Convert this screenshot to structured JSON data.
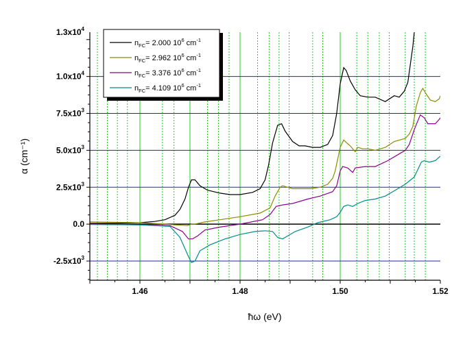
{
  "chart_data": {
    "type": "line",
    "xlabel": "ħω (eV)",
    "ylabel": "α (cm⁻¹)",
    "xlim": [
      1.45,
      1.52
    ],
    "ylim": [
      -3800,
      13000
    ],
    "x_ticks": [
      {
        "value": 1.46,
        "label": "1.46"
      },
      {
        "value": 1.48,
        "label": "1.48"
      },
      {
        "value": 1.5,
        "label": "1.50"
      },
      {
        "value": 1.52,
        "label": "1.52"
      }
    ],
    "y_ticks": [
      {
        "value": -2500,
        "label": "-2.5x10",
        "exp": "3"
      },
      {
        "value": 0,
        "label": "0.0",
        "exp": ""
      },
      {
        "value": 2500,
        "label": "2.5x10",
        "exp": "3"
      },
      {
        "value": 5000,
        "label": "5.0x10",
        "exp": "3"
      },
      {
        "value": 7500,
        "label": "7.5x10",
        "exp": "3"
      },
      {
        "value": 10000,
        "label": "1.0x10",
        "exp": "4"
      },
      {
        "value": 13000,
        "label": "1.3x10",
        "exp": "4"
      }
    ],
    "h_gridlines": [
      -2500,
      2500,
      5000,
      7500,
      10000
    ],
    "zero_line": 0,
    "v_gridlines_major": [
      1.46,
      1.47,
      1.48,
      1.5
    ],
    "v_gridlines_dotted": [
      1.4515,
      1.4535,
      1.4555,
      1.4575,
      1.4645,
      1.4668,
      1.4735,
      1.4757,
      1.4778,
      1.4835,
      1.4858,
      1.4878,
      1.4898,
      1.4945,
      1.4965,
      1.5033,
      1.5055,
      1.5078,
      1.5098,
      1.513,
      1.5148,
      1.517
    ],
    "grid_colors": {
      "horizontal": "#2222aa",
      "vertical": "#22cc22",
      "zero": "#000000"
    },
    "legend": {
      "position": "top-left",
      "entries": [
        {
          "prefix": "n",
          "sub": "FC",
          "text": "= 2.000 10",
          "sup": "6",
          "unit": " cm",
          "unit_sup": "-1",
          "color": "#000000"
        },
        {
          "prefix": "n",
          "sub": "FC",
          "text": "= 2.962 10",
          "sup": "6",
          "unit": " cm",
          "unit_sup": "-1",
          "color": "#8b8b00"
        },
        {
          "prefix": "n",
          "sub": "FC",
          "text": "= 3.376 10",
          "sup": "6",
          "unit": " cm",
          "unit_sup": "-1",
          "color": "#8b008b"
        },
        {
          "prefix": "n",
          "sub": "FC",
          "text": "= 4.109 10",
          "sup": "6",
          "unit": " cm",
          "unit_sup": "-1",
          "color": "#008b8b"
        }
      ]
    },
    "series": [
      {
        "name": "nFC= 2.000 10^6 cm^-1",
        "color": "#000000",
        "points": [
          [
            1.45,
            50
          ],
          [
            1.455,
            60
          ],
          [
            1.46,
            100
          ],
          [
            1.463,
            180
          ],
          [
            1.465,
            300
          ],
          [
            1.467,
            600
          ],
          [
            1.468,
            1000
          ],
          [
            1.469,
            1700
          ],
          [
            1.4697,
            2500
          ],
          [
            1.4703,
            3000
          ],
          [
            1.471,
            3000
          ],
          [
            1.472,
            2600
          ],
          [
            1.4735,
            2300
          ],
          [
            1.476,
            2100
          ],
          [
            1.478,
            2000
          ],
          [
            1.48,
            2000
          ],
          [
            1.4825,
            2150
          ],
          [
            1.484,
            2400
          ],
          [
            1.485,
            3000
          ],
          [
            1.4857,
            4000
          ],
          [
            1.4865,
            5500
          ],
          [
            1.4875,
            6700
          ],
          [
            1.4883,
            6800
          ],
          [
            1.489,
            6300
          ],
          [
            1.4905,
            5600
          ],
          [
            1.4918,
            5300
          ],
          [
            1.493,
            5300
          ],
          [
            1.4945,
            5200
          ],
          [
            1.496,
            5200
          ],
          [
            1.4975,
            5400
          ],
          [
            1.4985,
            6000
          ],
          [
            1.4993,
            7500
          ],
          [
            1.5,
            9500
          ],
          [
            1.5007,
            10600
          ],
          [
            1.5012,
            10400
          ],
          [
            1.502,
            9700
          ],
          [
            1.503,
            9100
          ],
          [
            1.504,
            8700
          ],
          [
            1.5055,
            8600
          ],
          [
            1.507,
            8600
          ],
          [
            1.509,
            8300
          ],
          [
            1.5108,
            8700
          ],
          [
            1.5118,
            8600
          ],
          [
            1.5128,
            9000
          ],
          [
            1.5135,
            9600
          ],
          [
            1.514,
            10800
          ],
          [
            1.5145,
            12000
          ],
          [
            1.5148,
            13000
          ]
        ]
      },
      {
        "name": "nFC= 2.962 10^6 cm^-1",
        "color": "#8b8b00",
        "points": [
          [
            1.45,
            150
          ],
          [
            1.46,
            100
          ],
          [
            1.465,
            0
          ],
          [
            1.467,
            -50
          ],
          [
            1.4695,
            -100
          ],
          [
            1.4703,
            0
          ],
          [
            1.471,
            0
          ],
          [
            1.473,
            150
          ],
          [
            1.476,
            300
          ],
          [
            1.48,
            500
          ],
          [
            1.484,
            750
          ],
          [
            1.486,
            1100
          ],
          [
            1.487,
            1900
          ],
          [
            1.488,
            2500
          ],
          [
            1.4885,
            2600
          ],
          [
            1.4895,
            2500
          ],
          [
            1.4905,
            2400
          ],
          [
            1.492,
            2400
          ],
          [
            1.494,
            2400
          ],
          [
            1.496,
            2500
          ],
          [
            1.4975,
            2700
          ],
          [
            1.4985,
            3100
          ],
          [
            1.499,
            3600
          ],
          [
            1.5,
            5200
          ],
          [
            1.5007,
            5700
          ],
          [
            1.5013,
            5500
          ],
          [
            1.502,
            5300
          ],
          [
            1.503,
            4900
          ],
          [
            1.5035,
            5200
          ],
          [
            1.5045,
            5100
          ],
          [
            1.5055,
            5100
          ],
          [
            1.507,
            5000
          ],
          [
            1.509,
            5200
          ],
          [
            1.5108,
            5600
          ],
          [
            1.513,
            5800
          ],
          [
            1.5138,
            6100
          ],
          [
            1.5145,
            6600
          ],
          [
            1.5152,
            8000
          ],
          [
            1.516,
            8900
          ],
          [
            1.5165,
            9200
          ],
          [
            1.5172,
            8800
          ],
          [
            1.518,
            8400
          ],
          [
            1.519,
            8300
          ],
          [
            1.5198,
            8500
          ],
          [
            1.52,
            8700
          ]
        ]
      },
      {
        "name": "nFC= 3.376 10^6 cm^-1",
        "color": "#8b008b",
        "points": [
          [
            1.45,
            0
          ],
          [
            1.46,
            -50
          ],
          [
            1.466,
            -100
          ],
          [
            1.4685,
            -500
          ],
          [
            1.4697,
            -1000
          ],
          [
            1.4705,
            -1000
          ],
          [
            1.4715,
            -800
          ],
          [
            1.473,
            -400
          ],
          [
            1.476,
            -200
          ],
          [
            1.48,
            0
          ],
          [
            1.4845,
            300
          ],
          [
            1.486,
            650
          ],
          [
            1.4872,
            1200
          ],
          [
            1.4885,
            1300
          ],
          [
            1.4905,
            1400
          ],
          [
            1.4935,
            1700
          ],
          [
            1.496,
            1900
          ],
          [
            1.4985,
            2200
          ],
          [
            1.4993,
            2600
          ],
          [
            1.5,
            3600
          ],
          [
            1.5005,
            3900
          ],
          [
            1.5015,
            3800
          ],
          [
            1.5025,
            3500
          ],
          [
            1.503,
            3800
          ],
          [
            1.505,
            3900
          ],
          [
            1.507,
            3900
          ],
          [
            1.5095,
            4300
          ],
          [
            1.512,
            4800
          ],
          [
            1.513,
            5000
          ],
          [
            1.5138,
            5400
          ],
          [
            1.5148,
            6400
          ],
          [
            1.5155,
            7000
          ],
          [
            1.516,
            7400
          ],
          [
            1.5168,
            7200
          ],
          [
            1.5175,
            6800
          ],
          [
            1.519,
            6800
          ],
          [
            1.5198,
            7100
          ],
          [
            1.52,
            7200
          ]
        ]
      },
      {
        "name": "nFC= 4.109 10^6 cm^-1",
        "color": "#008b8b",
        "points": [
          [
            1.45,
            -20
          ],
          [
            1.46,
            -50
          ],
          [
            1.466,
            -150
          ],
          [
            1.468,
            -900
          ],
          [
            1.4697,
            -2200
          ],
          [
            1.4703,
            -2600
          ],
          [
            1.471,
            -2500
          ],
          [
            1.472,
            -1800
          ],
          [
            1.474,
            -1400
          ],
          [
            1.477,
            -1000
          ],
          [
            1.48,
            -700
          ],
          [
            1.483,
            -500
          ],
          [
            1.485,
            -450
          ],
          [
            1.4865,
            -500
          ],
          [
            1.4875,
            -900
          ],
          [
            1.4885,
            -1000
          ],
          [
            1.4895,
            -800
          ],
          [
            1.491,
            -500
          ],
          [
            1.4935,
            -200
          ],
          [
            1.4955,
            100
          ],
          [
            1.498,
            300
          ],
          [
            1.4993,
            500
          ],
          [
            1.5,
            800
          ],
          [
            1.5007,
            1200
          ],
          [
            1.5015,
            1300
          ],
          [
            1.5025,
            1200
          ],
          [
            1.5035,
            1400
          ],
          [
            1.505,
            1600
          ],
          [
            1.507,
            1700
          ],
          [
            1.509,
            1900
          ],
          [
            1.511,
            2300
          ],
          [
            1.513,
            2700
          ],
          [
            1.5148,
            3200
          ],
          [
            1.5155,
            3700
          ],
          [
            1.5162,
            4200
          ],
          [
            1.5168,
            4300
          ],
          [
            1.5178,
            4200
          ],
          [
            1.519,
            4300
          ],
          [
            1.52,
            4600
          ]
        ]
      }
    ]
  }
}
